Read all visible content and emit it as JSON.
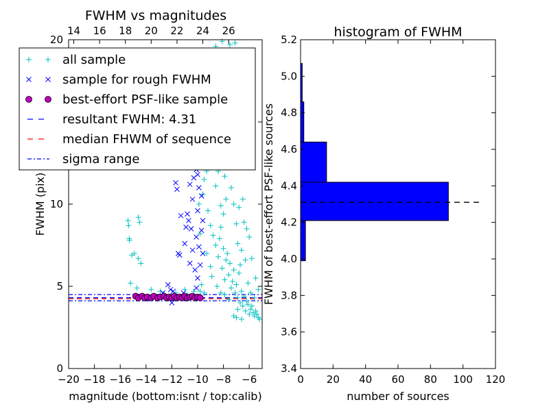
{
  "chart_data": [
    {
      "type": "scatter",
      "title": "FWHM vs magnitudes",
      "xlabel": "magnitude (bottom:isnt / top:calib)",
      "ylabel": "FWHM (pix)",
      "xlim": [
        -20,
        -5
      ],
      "ylim": [
        0,
        20
      ],
      "x_ticks": [
        -20,
        -18,
        -16,
        -14,
        -12,
        -10,
        -8,
        -6
      ],
      "x_tick_labels": [
        "−20",
        "−18",
        "−16",
        "−14",
        "−12",
        "−10",
        "−8",
        "−6"
      ],
      "y_ticks": [
        0,
        5,
        10,
        15,
        20
      ],
      "y_tick_labels": [
        "0",
        "5",
        "10",
        "15",
        "20"
      ],
      "top_axis_ticks": [
        14,
        16,
        18,
        20,
        22,
        24,
        26
      ],
      "top_axis_offset": 33.6,
      "grid": false,
      "legend": {
        "placement": "upper-left",
        "entries": [
          {
            "label": "all sample",
            "marker": "+",
            "color": "#00bfbf"
          },
          {
            "label": "sample for rough FWHM",
            "marker": "x",
            "color": "#0000ff"
          },
          {
            "label": "best-effort PSF-like sample",
            "marker": "o",
            "color": "#bf00bf"
          },
          {
            "label": "resultant FWHM: 4.31",
            "marker": "dashed",
            "color": "#0000ff"
          },
          {
            "label": "median FHWM of sequence",
            "marker": "dashed",
            "color": "#ff0000"
          },
          {
            "label": "sigma range",
            "marker": "dashdot",
            "color": "#0000ff"
          }
        ]
      },
      "series": [
        {
          "name": "all sample",
          "marker": "+",
          "color": "#00bfbf",
          "points": [
            [
              -15.4,
              9.0
            ],
            [
              -15.35,
              8.7
            ],
            [
              -15.3,
              7.9
            ],
            [
              -15.28,
              7.8
            ],
            [
              -15.1,
              6.9
            ],
            [
              -14.9,
              7.0
            ],
            [
              -14.6,
              9.2
            ],
            [
              -14.5,
              8.9
            ],
            [
              -14.6,
              6.7
            ],
            [
              -14.4,
              6.4
            ],
            [
              -15.2,
              5.2
            ],
            [
              -14.7,
              4.9
            ],
            [
              -13.6,
              4.8
            ],
            [
              -12.9,
              4.7
            ],
            [
              -12.6,
              4.5
            ],
            [
              -11.7,
              4.6
            ],
            [
              -11.0,
              4.8
            ],
            [
              -10.8,
              4.5
            ],
            [
              -10.3,
              4.7
            ],
            [
              -9.8,
              4.7
            ],
            [
              -9.7,
              5.1
            ],
            [
              -9.5,
              4.6
            ],
            [
              -9.6,
              10.6
            ],
            [
              -9.8,
              8.2
            ],
            [
              -9.9,
              10.0
            ],
            [
              -9.2,
              9.6
            ],
            [
              -9.3,
              7.0
            ],
            [
              -9.0,
              8.7
            ],
            [
              -8.8,
              8.1
            ],
            [
              -8.6,
              7.5
            ],
            [
              -9.0,
              6.2
            ],
            [
              -8.9,
              5.6
            ],
            [
              -8.5,
              5.0
            ],
            [
              -8.4,
              6.8
            ],
            [
              -8.3,
              7.9
            ],
            [
              -8.2,
              8.6
            ],
            [
              -8.1,
              6.1
            ],
            [
              -8.0,
              7.3
            ],
            [
              -7.9,
              5.4
            ],
            [
              -7.8,
              6.6
            ],
            [
              -7.7,
              7.0
            ],
            [
              -7.6,
              5.7
            ],
            [
              -7.5,
              6.4
            ],
            [
              -7.4,
              4.9
            ],
            [
              -7.3,
              5.3
            ],
            [
              -7.2,
              6.0
            ],
            [
              -7.1,
              4.6
            ],
            [
              -7.0,
              5.1
            ],
            [
              -6.9,
              4.3
            ],
            [
              -6.8,
              5.8
            ],
            [
              -6.7,
              4.0
            ],
            [
              -6.6,
              4.7
            ],
            [
              -6.5,
              3.8
            ],
            [
              -6.4,
              4.4
            ],
            [
              -6.3,
              3.5
            ],
            [
              -6.2,
              4.1
            ],
            [
              -6.1,
              3.9
            ],
            [
              -6.0,
              3.3
            ],
            [
              -5.9,
              3.6
            ],
            [
              -5.8,
              3.8
            ],
            [
              -5.7,
              3.4
            ],
            [
              -5.6,
              3.2
            ],
            [
              -5.5,
              3.5
            ],
            [
              -5.4,
              3.3
            ],
            [
              -5.3,
              3.1
            ],
            [
              -5.2,
              3.0
            ],
            [
              -7.0,
              3.1
            ],
            [
              -7.2,
              3.2
            ],
            [
              -6.9,
              3.6
            ],
            [
              -6.6,
              3.0
            ],
            [
              -8.0,
              9.4
            ],
            [
              -8.2,
              9.9
            ],
            [
              -7.8,
              10.3
            ],
            [
              -8.6,
              11.1
            ],
            [
              -8.4,
              12.0
            ],
            [
              -7.9,
              11.7
            ],
            [
              -8.1,
              13.0
            ],
            [
              -8.5,
              13.8
            ],
            [
              -7.7,
              12.6
            ],
            [
              -8.3,
              14.5
            ],
            [
              -7.6,
              15.2
            ],
            [
              -8.0,
              16.0
            ],
            [
              -7.8,
              17.0
            ],
            [
              -8.7,
              12.5
            ],
            [
              -7.4,
              11.0
            ],
            [
              -7.2,
              10.0
            ],
            [
              -6.8,
              9.8
            ],
            [
              -6.5,
              10.3
            ],
            [
              -6.2,
              8.5
            ],
            [
              -7.0,
              8.8
            ],
            [
              -6.9,
              7.6
            ],
            [
              -6.6,
              7.2
            ],
            [
              -6.3,
              6.6
            ],
            [
              -6.1,
              5.2
            ],
            [
              -6.7,
              6.3
            ],
            [
              -5.9,
              4.6
            ],
            [
              -5.6,
              4.3
            ],
            [
              -8.8,
              17.5
            ],
            [
              -9.1,
              18.9
            ],
            [
              -8.6,
              19.6
            ],
            [
              -8.1,
              19.9
            ],
            [
              -7.5,
              19.7
            ],
            [
              -7.1,
              19.8
            ],
            [
              -7.9,
              18.2
            ],
            [
              -8.4,
              18.5
            ],
            [
              -7.3,
              14.0
            ],
            [
              -6.9,
              13.3
            ],
            [
              -8.9,
              15.0
            ],
            [
              -9.3,
              12.0
            ],
            [
              -9.5,
              11.5
            ],
            [
              -6.0,
              8.0
            ],
            [
              -5.8,
              6.7
            ],
            [
              -6.4,
              8.9
            ],
            [
              -5.3,
              4.8
            ],
            [
              -5.5,
              5.5
            ],
            [
              -7.6,
              4.2
            ],
            [
              -7.9,
              4.5
            ],
            [
              -8.2,
              4.6
            ]
          ]
        },
        {
          "name": "sample for rough FWHM",
          "marker": "x",
          "color": "#0000ff",
          "points": [
            [
              -12.3,
              5.1
            ],
            [
              -12.1,
              4.8
            ],
            [
              -11.9,
              4.7
            ],
            [
              -11.1,
              4.6
            ],
            [
              -11.5,
              7.0
            ],
            [
              -11.4,
              6.9
            ],
            [
              -11.0,
              7.6
            ],
            [
              -10.9,
              8.6
            ],
            [
              -10.7,
              9.0
            ],
            [
              -10.5,
              8.5
            ],
            [
              -10.4,
              10.3
            ],
            [
              -10.8,
              9.4
            ],
            [
              -10.6,
              11.2
            ],
            [
              -10.3,
              11.6
            ],
            [
              -10.1,
              12.1
            ],
            [
              -9.9,
              12.7
            ],
            [
              -11.3,
              9.3
            ],
            [
              -11.6,
              10.9
            ],
            [
              -11.7,
              11.3
            ],
            [
              -10.2,
              6.0
            ],
            [
              -10.0,
              5.5
            ],
            [
              -9.8,
              6.3
            ],
            [
              -9.9,
              7.4
            ],
            [
              -10.1,
              8.0
            ],
            [
              -10.0,
              9.6
            ],
            [
              -9.7,
              10.5
            ],
            [
              -9.6,
              9.0
            ],
            [
              -9.9,
              11.0
            ],
            [
              -10.2,
              12.5
            ],
            [
              -10.1,
              13.5
            ],
            [
              -9.8,
              13.0
            ],
            [
              -10.3,
              13.8
            ],
            [
              -10.0,
              11.8
            ],
            [
              -9.7,
              8.4
            ],
            [
              -9.6,
              7.0
            ],
            [
              -10.4,
              7.2
            ],
            [
              -10.6,
              6.4
            ],
            [
              -12.0,
              4.0
            ],
            [
              -11.2,
              4.3
            ],
            [
              -12.7,
              4.6
            ],
            [
              -10.1,
              4.9
            ]
          ]
        },
        {
          "name": "best-effort PSF-like sample",
          "marker": "o",
          "color": "#bf00bf",
          "points": [
            [
              -14.8,
              4.4
            ],
            [
              -14.6,
              4.3
            ],
            [
              -14.3,
              4.4
            ],
            [
              -14.1,
              4.3
            ],
            [
              -13.9,
              4.35
            ],
            [
              -13.6,
              4.3
            ],
            [
              -13.4,
              4.4
            ],
            [
              -13.1,
              4.3
            ],
            [
              -12.9,
              4.35
            ],
            [
              -12.6,
              4.4
            ],
            [
              -12.4,
              4.3
            ],
            [
              -12.2,
              4.35
            ],
            [
              -12.0,
              4.3
            ],
            [
              -11.8,
              4.4
            ],
            [
              -11.6,
              4.3
            ],
            [
              -11.4,
              4.35
            ],
            [
              -11.2,
              4.3
            ],
            [
              -11.0,
              4.4
            ],
            [
              -10.8,
              4.3
            ],
            [
              -10.6,
              4.35
            ],
            [
              -10.4,
              4.4
            ],
            [
              -10.2,
              4.3
            ],
            [
              -10.0,
              4.35
            ],
            [
              -9.8,
              4.3
            ]
          ]
        }
      ],
      "reference_lines": [
        {
          "name": "resultant FWHM: 4.31",
          "y": 4.31,
          "style": "dashed",
          "color": "#0000ff"
        },
        {
          "name": "median FHWM of sequence",
          "y": 4.25,
          "style": "dashed",
          "color": "#ff0000"
        },
        {
          "name": "sigma range",
          "y": 4.5,
          "style": "dashdot",
          "color": "#0000ff"
        },
        {
          "name": "sigma range",
          "y": 4.12,
          "style": "dashdot",
          "color": "#0000ff"
        }
      ]
    },
    {
      "type": "bar",
      "orientation": "horizontal",
      "title": "histogram of FWHM",
      "xlabel": "number of sources",
      "ylabel": "FWHM of best-effort PSF-like sources",
      "xlim": [
        0,
        120
      ],
      "ylim": [
        3.4,
        5.2
      ],
      "x_ticks": [
        0,
        20,
        40,
        60,
        80,
        100,
        120
      ],
      "x_tick_labels": [
        "0",
        "20",
        "40",
        "60",
        "80",
        "100",
        "120"
      ],
      "y_ticks": [
        3.4,
        3.6,
        3.8,
        4.0,
        4.2,
        4.4,
        4.6,
        4.8,
        5.0,
        5.2
      ],
      "y_tick_labels": [
        "3.4",
        "3.6",
        "3.8",
        "4.0",
        "4.2",
        "4.4",
        "4.6",
        "4.8",
        "5.0",
        "5.2"
      ],
      "color": "#0000ff",
      "bins": [
        {
          "from": 3.99,
          "to": 4.21,
          "count": 3
        },
        {
          "from": 4.21,
          "to": 4.42,
          "count": 91
        },
        {
          "from": 4.42,
          "to": 4.64,
          "count": 16
        },
        {
          "from": 4.64,
          "to": 4.86,
          "count": 2
        },
        {
          "from": 4.86,
          "to": 5.07,
          "count": 1
        }
      ],
      "reference_line": {
        "value": 4.31,
        "x_extent": [
          0,
          110
        ],
        "style": "dashed",
        "color": "#000000"
      }
    }
  ]
}
